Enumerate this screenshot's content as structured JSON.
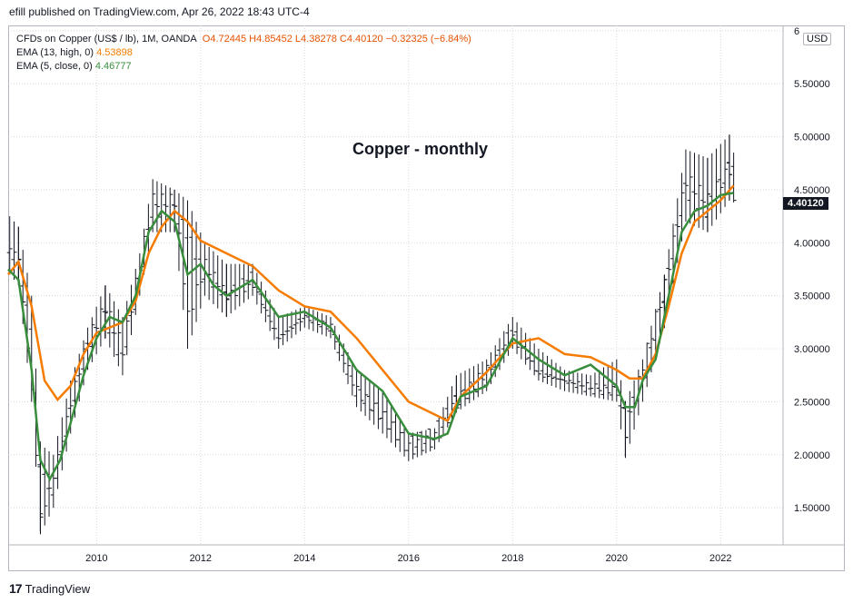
{
  "publisher_line": "efill published on TradingView.com, Apr 26, 2022 18:43 UTC-4",
  "legend": {
    "symbol_line_prefix": "CFDs on Copper (US$ / lb), 1M, OANDA",
    "ohlc": "O4.72445  H4.85452  L4.38278  C4.40120  −0.32325 (−6.84%)",
    "ema13_label": "EMA (13, high, 0)",
    "ema13_value": "4.53898",
    "ema5_label": "EMA (5, close, 0)",
    "ema5_value": "4.46777"
  },
  "currency_badge": "USD",
  "last_price_tag": "4.40120",
  "brand": "TradingView",
  "colors": {
    "ema13": "#f57c00",
    "ema5": "#388e3c",
    "bars": "#131722",
    "grid": "#d8d8d8"
  },
  "chart_data": {
    "type": "line",
    "title": "Copper - monthly",
    "xlabel": "",
    "ylabel": "",
    "ylim": [
      1.15,
      6.05
    ],
    "xlim": [
      2008.3,
      2023.2
    ],
    "yticks": [
      "1.50000",
      "2.00000",
      "2.50000",
      "3.00000",
      "3.50000",
      "4.00000",
      "4.50000",
      "5.00000",
      "5.50000",
      "6"
    ],
    "xticks": [
      "2010",
      "2012",
      "2014",
      "2016",
      "2018",
      "2020",
      "2022"
    ],
    "ohlc_keypoints": [
      {
        "x": 2008.33,
        "o": 3.9,
        "h": 4.25,
        "l": 3.7,
        "c": 3.95
      },
      {
        "x": 2008.5,
        "o": 3.8,
        "h": 4.15,
        "l": 3.6,
        "c": 3.85
      },
      {
        "x": 2008.75,
        "o": 3.2,
        "h": 3.5,
        "l": 2.5,
        "c": 2.6
      },
      {
        "x": 2008.92,
        "o": 1.9,
        "h": 2.1,
        "l": 1.25,
        "c": 1.4
      },
      {
        "x": 2009.17,
        "o": 1.6,
        "h": 2.0,
        "l": 1.5,
        "c": 1.8
      },
      {
        "x": 2009.5,
        "o": 2.4,
        "h": 2.7,
        "l": 2.2,
        "c": 2.5
      },
      {
        "x": 2009.83,
        "o": 3.0,
        "h": 3.2,
        "l": 2.8,
        "c": 3.1
      },
      {
        "x": 2010.17,
        "o": 3.3,
        "h": 3.6,
        "l": 3.1,
        "c": 3.4
      },
      {
        "x": 2010.5,
        "o": 2.9,
        "h": 3.3,
        "l": 2.75,
        "c": 3.0
      },
      {
        "x": 2010.83,
        "o": 3.6,
        "h": 3.9,
        "l": 3.5,
        "c": 3.8
      },
      {
        "x": 2011.08,
        "o": 4.3,
        "h": 4.6,
        "l": 4.1,
        "c": 4.4
      },
      {
        "x": 2011.5,
        "o": 4.3,
        "h": 4.5,
        "l": 4.1,
        "c": 4.4
      },
      {
        "x": 2011.75,
        "o": 4.1,
        "h": 4.4,
        "l": 3.0,
        "c": 3.3
      },
      {
        "x": 2012.08,
        "o": 3.7,
        "h": 4.0,
        "l": 3.5,
        "c": 3.8
      },
      {
        "x": 2012.5,
        "o": 3.5,
        "h": 3.8,
        "l": 3.3,
        "c": 3.5
      },
      {
        "x": 2013.0,
        "o": 3.7,
        "h": 3.8,
        "l": 3.5,
        "c": 3.6
      },
      {
        "x": 2013.5,
        "o": 3.1,
        "h": 3.3,
        "l": 3.0,
        "c": 3.1
      },
      {
        "x": 2014.0,
        "o": 3.3,
        "h": 3.4,
        "l": 3.2,
        "c": 3.3
      },
      {
        "x": 2014.5,
        "o": 3.2,
        "h": 3.3,
        "l": 3.1,
        "c": 3.2
      },
      {
        "x": 2015.0,
        "o": 2.6,
        "h": 2.8,
        "l": 2.45,
        "c": 2.6
      },
      {
        "x": 2015.5,
        "o": 2.4,
        "h": 2.6,
        "l": 2.2,
        "c": 2.35
      },
      {
        "x": 2016.0,
        "o": 2.1,
        "h": 2.2,
        "l": 1.94,
        "c": 2.05
      },
      {
        "x": 2016.5,
        "o": 2.2,
        "h": 2.25,
        "l": 2.05,
        "c": 2.15
      },
      {
        "x": 2016.92,
        "o": 2.5,
        "h": 2.75,
        "l": 2.4,
        "c": 2.5
      },
      {
        "x": 2017.5,
        "o": 2.7,
        "h": 2.9,
        "l": 2.6,
        "c": 2.8
      },
      {
        "x": 2018.0,
        "o": 3.2,
        "h": 3.3,
        "l": 3.0,
        "c": 3.1
      },
      {
        "x": 2018.5,
        "o": 2.8,
        "h": 3.0,
        "l": 2.7,
        "c": 2.75
      },
      {
        "x": 2019.0,
        "o": 2.7,
        "h": 2.8,
        "l": 2.6,
        "c": 2.7
      },
      {
        "x": 2019.5,
        "o": 2.6,
        "h": 2.75,
        "l": 2.55,
        "c": 2.65
      },
      {
        "x": 2020.0,
        "o": 2.6,
        "h": 2.9,
        "l": 2.5,
        "c": 2.6
      },
      {
        "x": 2020.17,
        "o": 2.4,
        "h": 2.5,
        "l": 1.97,
        "c": 2.2
      },
      {
        "x": 2020.5,
        "o": 2.6,
        "h": 2.9,
        "l": 2.5,
        "c": 2.85
      },
      {
        "x": 2020.92,
        "o": 3.5,
        "h": 3.7,
        "l": 3.2,
        "c": 3.6
      },
      {
        "x": 2021.33,
        "o": 4.5,
        "h": 4.88,
        "l": 4.2,
        "c": 4.6
      },
      {
        "x": 2021.75,
        "o": 4.3,
        "h": 4.8,
        "l": 4.1,
        "c": 4.4
      },
      {
        "x": 2022.17,
        "o": 4.7,
        "h": 5.02,
        "l": 4.4,
        "c": 4.7
      },
      {
        "x": 2022.25,
        "o": 4.72,
        "h": 4.85,
        "l": 4.38,
        "c": 4.4
      }
    ],
    "series": [
      {
        "name": "EMA (13, high, 0)",
        "x": [
          2008.3,
          2008.5,
          2008.75,
          2009.0,
          2009.25,
          2009.5,
          2009.75,
          2010.0,
          2010.25,
          2010.5,
          2010.75,
          2011.0,
          2011.25,
          2011.5,
          2011.75,
          2012.0,
          2012.5,
          2013.0,
          2013.5,
          2014.0,
          2014.5,
          2015.0,
          2015.5,
          2016.0,
          2016.5,
          2016.75,
          2017.0,
          2017.5,
          2018.0,
          2018.5,
          2019.0,
          2019.5,
          2020.0,
          2020.25,
          2020.5,
          2020.75,
          2021.0,
          2021.25,
          2021.5,
          2021.75,
          2022.0,
          2022.25
        ],
        "y": [
          3.7,
          3.82,
          3.4,
          2.7,
          2.52,
          2.65,
          2.95,
          3.15,
          3.2,
          3.25,
          3.45,
          3.9,
          4.15,
          4.3,
          4.2,
          4.02,
          3.9,
          3.78,
          3.55,
          3.4,
          3.35,
          3.1,
          2.8,
          2.5,
          2.38,
          2.32,
          2.55,
          2.78,
          3.05,
          3.1,
          2.95,
          2.92,
          2.8,
          2.72,
          2.72,
          2.95,
          3.4,
          3.9,
          4.2,
          4.3,
          4.4,
          4.54
        ]
      },
      {
        "name": "EMA (5, close, 0)",
        "x": [
          2008.3,
          2008.5,
          2008.75,
          2008.92,
          2009.1,
          2009.3,
          2009.5,
          2009.75,
          2010.0,
          2010.25,
          2010.5,
          2010.75,
          2011.0,
          2011.25,
          2011.5,
          2011.75,
          2012.0,
          2012.25,
          2012.5,
          2013.0,
          2013.5,
          2014.0,
          2014.5,
          2015.0,
          2015.5,
          2016.0,
          2016.5,
          2016.75,
          2017.0,
          2017.5,
          2018.0,
          2018.5,
          2019.0,
          2019.5,
          2020.0,
          2020.17,
          2020.35,
          2020.5,
          2020.75,
          2021.0,
          2021.25,
          2021.5,
          2021.75,
          2022.0,
          2022.25
        ],
        "y": [
          3.75,
          3.65,
          2.8,
          1.95,
          1.77,
          1.95,
          2.3,
          2.75,
          3.1,
          3.3,
          3.25,
          3.5,
          4.1,
          4.3,
          4.2,
          3.7,
          3.8,
          3.6,
          3.5,
          3.65,
          3.3,
          3.35,
          3.2,
          2.8,
          2.6,
          2.2,
          2.15,
          2.2,
          2.55,
          2.65,
          3.1,
          2.9,
          2.75,
          2.85,
          2.65,
          2.45,
          2.45,
          2.7,
          2.9,
          3.5,
          4.1,
          4.3,
          4.35,
          4.45,
          4.47
        ]
      }
    ]
  }
}
